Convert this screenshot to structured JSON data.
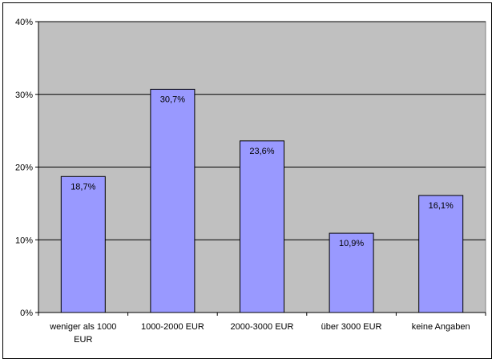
{
  "chart_data": {
    "type": "bar",
    "categories": [
      [
        "weniger als 1000",
        "EUR"
      ],
      [
        "1000-2000 EUR"
      ],
      [
        "2000-3000 EUR"
      ],
      [
        "über 3000 EUR"
      ],
      [
        "keine Angaben"
      ]
    ],
    "values": [
      18.7,
      30.7,
      23.6,
      10.9,
      16.1
    ],
    "data_labels": [
      "18,7%",
      "30,7%",
      "23,6%",
      "10,9%",
      "16,1%"
    ],
    "y_ticks": [
      0,
      10,
      20,
      30,
      40
    ],
    "y_tick_labels": [
      "0%",
      "10%",
      "20%",
      "30%",
      "40%"
    ],
    "ylim": [
      0,
      40
    ],
    "grid": true,
    "legend": "none",
    "colors": {
      "plot_background": "#c0c0c0",
      "bar_fill": "#9999ff",
      "bar_stroke": "#000000",
      "gridline": "#000000"
    }
  }
}
